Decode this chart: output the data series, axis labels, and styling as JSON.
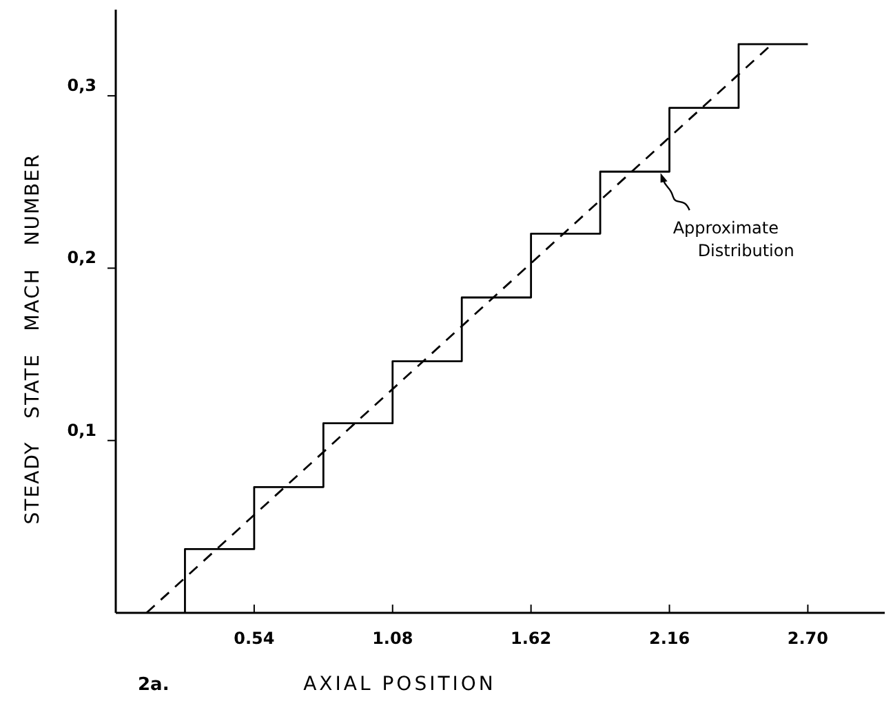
{
  "chart_data": {
    "type": "line",
    "xlabel": "AXIAL POSITION",
    "ylabel": "STEADY   STATE   MACH   NUMBER",
    "xlim": [
      0,
      3.0
    ],
    "ylim": [
      0,
      0.35
    ],
    "xticks": [
      0.54,
      1.08,
      1.62,
      2.16,
      {
        "value": 2.7,
        "label": "2.70"
      }
    ],
    "yticks": [
      {
        "value": 0.1,
        "label": "0,1"
      },
      {
        "value": 0.2,
        "label": "0,2"
      },
      {
        "value": 0.3,
        "label": "0,3"
      }
    ],
    "grid": false,
    "series": [
      {
        "type": "step",
        "color": "#000000",
        "line_style": "solid",
        "x": [
          0.27,
          0.27,
          0.54,
          0.81,
          1.08,
          1.35,
          1.62,
          1.89,
          2.16,
          2.43,
          2.7
        ],
        "values": [
          0,
          0.037,
          0.073,
          0.11,
          0.146,
          0.183,
          0.22,
          0.256,
          0.293,
          0.33,
          0.33
        ]
      },
      {
        "color": "#000000",
        "line_style": "dashed",
        "x": [
          0.12,
          2.56
        ],
        "values": [
          0,
          0.33
        ]
      }
    ],
    "annotations": [
      {
        "text": "Approximate\nDistribution",
        "x": 2.12,
        "y": 0.256
      },
      "2a."
    ]
  }
}
